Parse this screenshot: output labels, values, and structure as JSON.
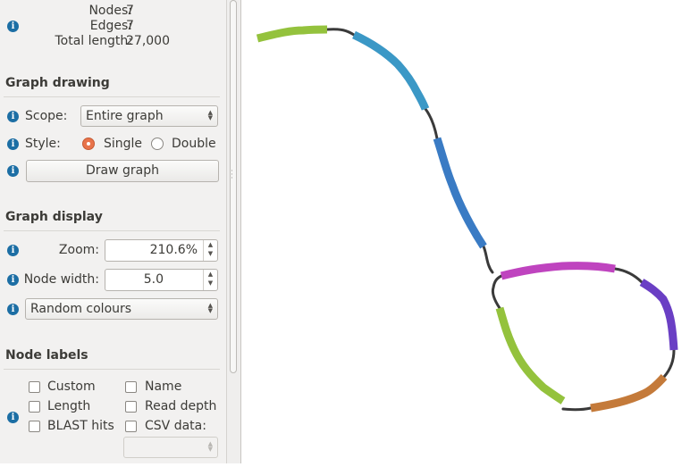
{
  "stats": {
    "nodes_label": "Nodes:",
    "nodes_value": "7",
    "edges_label": "Edges:",
    "edges_value": "7",
    "length_label": "Total length:",
    "length_value": "27,000"
  },
  "graph_drawing": {
    "title": "Graph drawing",
    "scope_label": "Scope:",
    "scope_value": "Entire graph",
    "style_label": "Style:",
    "style_single": "Single",
    "style_double": "Double",
    "style_selected": "Single",
    "draw_button": "Draw graph"
  },
  "graph_display": {
    "title": "Graph display",
    "zoom_label": "Zoom:",
    "zoom_value": "210.6%",
    "node_width_label": "Node width:",
    "node_width_value": "5.0",
    "colour_scheme": "Random colours"
  },
  "node_labels": {
    "title": "Node labels",
    "custom": "Custom",
    "name": "Name",
    "length": "Length",
    "read_depth": "Read depth",
    "blast_hits": "BLAST hits",
    "csv_data": "CSV data:",
    "checked": []
  },
  "icons": {
    "info": "info-icon",
    "radio_checked": "radio-checked-icon",
    "radio_unchecked": "radio-unchecked-icon",
    "checkbox": "checkbox-icon",
    "spin_arrows": "spin-arrows-icon",
    "combo_arrows": "combo-arrows-icon"
  },
  "colors": {
    "accent_radio": "#e8734a",
    "info_icon": "#1c6ea4",
    "edge": "#3a3a3a"
  },
  "graph": {
    "nodes": [
      {
        "color": "#94c23d"
      },
      {
        "color": "#3b98c6"
      },
      {
        "color": "#3a7bc4"
      },
      {
        "color": "#bf44bf"
      },
      {
        "color": "#6a3fc4"
      },
      {
        "color": "#c47a3a"
      },
      {
        "color": "#94c23d"
      }
    ]
  }
}
